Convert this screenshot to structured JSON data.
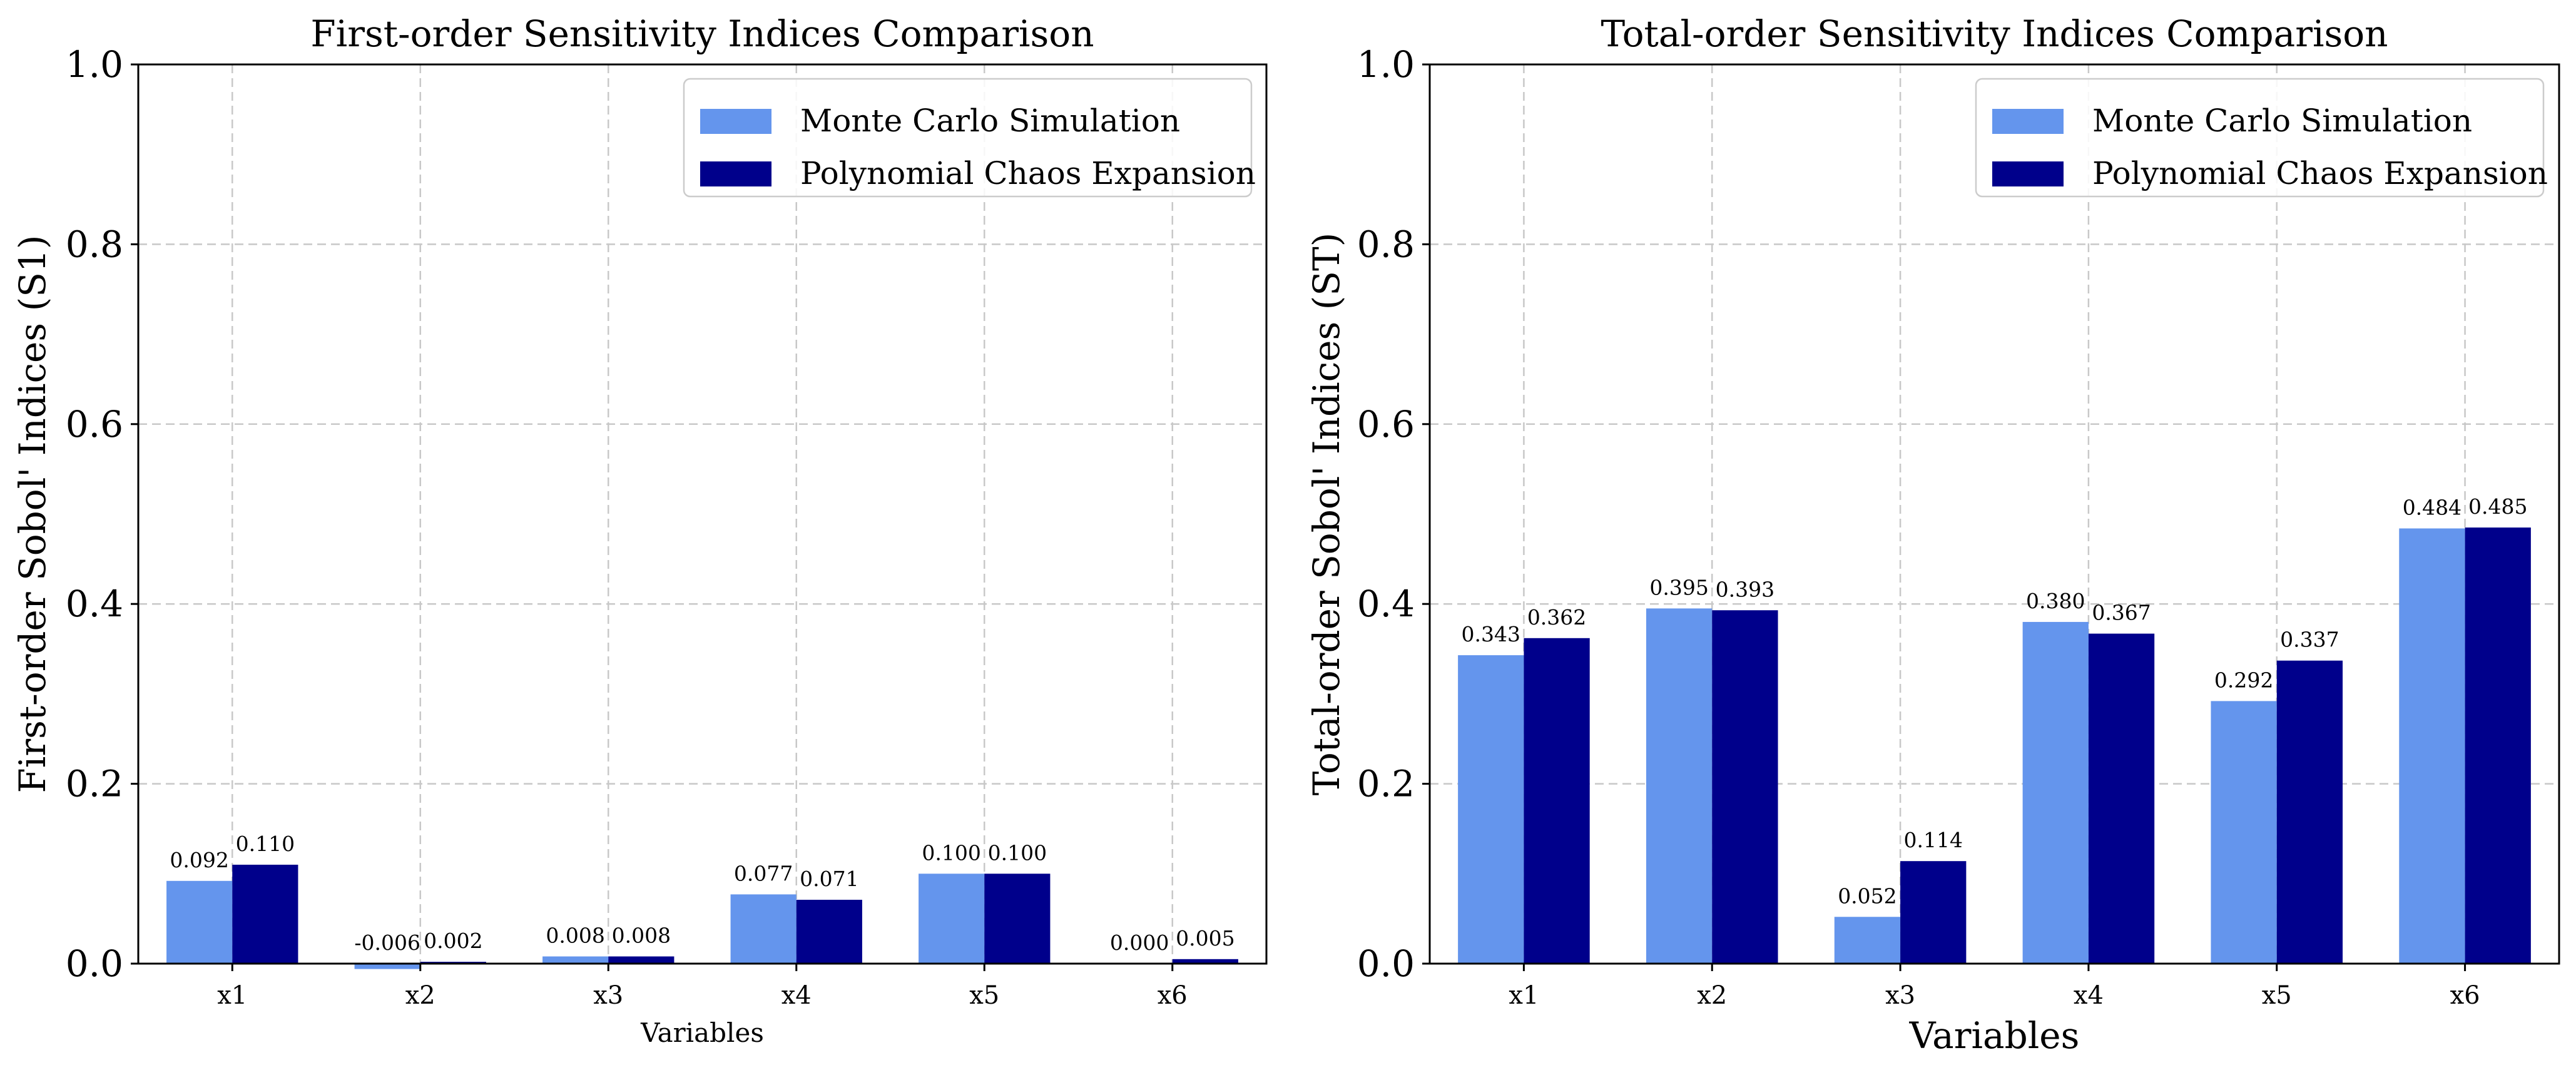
{
  "colors": {
    "monte_carlo": "#6495ED",
    "pce": "#00008B"
  },
  "chart_data": [
    {
      "type": "bar",
      "title": "First-order Sensitivity Indices Comparison",
      "xlabel": "Variables",
      "ylabel": "First-order Sobol' Indices (S1)",
      "categories": [
        "x1",
        "x2",
        "x3",
        "x4",
        "x5",
        "x6"
      ],
      "series": [
        {
          "name": "Monte Carlo Simulation",
          "values": [
            0.092,
            -0.006,
            0.008,
            0.077,
            0.1,
            0.0
          ]
        },
        {
          "name": "Polynomial Chaos Expansion",
          "values": [
            0.11,
            0.002,
            0.008,
            0.071,
            0.1,
            0.005
          ]
        }
      ],
      "value_labels": [
        [
          "0.092",
          "-0.006",
          "0.008",
          "0.077",
          "0.100",
          "0.000"
        ],
        [
          "0.110",
          "0.002",
          "0.008",
          "0.071",
          "0.100",
          "0.005"
        ]
      ],
      "ylim": [
        0,
        1.0
      ],
      "yticks": [
        "0.0",
        "0.2",
        "0.4",
        "0.6",
        "0.8",
        "1.0"
      ],
      "grid": true,
      "legend": "top-right"
    },
    {
      "type": "bar",
      "title": "Total-order Sensitivity Indices Comparison",
      "xlabel": "Variables",
      "ylabel": "Total-order Sobol' Indices (ST)",
      "categories": [
        "x1",
        "x2",
        "x3",
        "x4",
        "x5",
        "x6"
      ],
      "series": [
        {
          "name": "Monte Carlo Simulation",
          "values": [
            0.343,
            0.395,
            0.052,
            0.38,
            0.292,
            0.484
          ]
        },
        {
          "name": "Polynomial Chaos Expansion",
          "values": [
            0.362,
            0.393,
            0.114,
            0.367,
            0.337,
            0.485
          ]
        }
      ],
      "value_labels": [
        [
          "0.343",
          "0.395",
          "0.052",
          "0.380",
          "0.292",
          "0.484"
        ],
        [
          "0.362",
          "0.393",
          "0.114",
          "0.367",
          "0.337",
          "0.485"
        ]
      ],
      "ylim": [
        0,
        1.0
      ],
      "yticks": [
        "0.0",
        "0.2",
        "0.4",
        "0.6",
        "0.8",
        "1.0"
      ],
      "grid": true,
      "legend": "top-right"
    }
  ]
}
